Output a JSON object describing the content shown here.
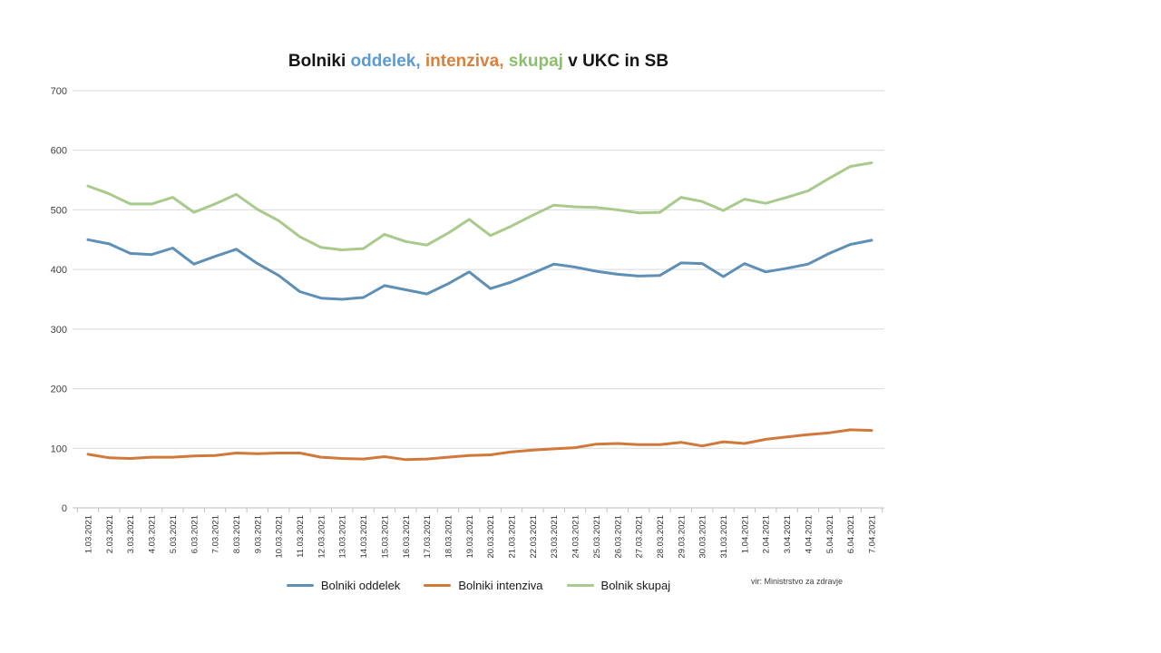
{
  "title": {
    "parts": [
      {
        "text": "Bolniki ",
        "color": "#151515"
      },
      {
        "text": "oddelek,",
        "color": "#5b9bd5"
      },
      {
        "text": " ",
        "color": "#151515"
      },
      {
        "text": "intenziva,",
        "color": "#d9803c"
      },
      {
        "text": " ",
        "color": "#151515"
      },
      {
        "text": "skupaj",
        "color": "#8cbf6c"
      },
      {
        "text": " v UKC in SB",
        "color": "#151515"
      }
    ]
  },
  "source_note": "vir: Ministrstvo za zdravje",
  "legend": [
    {
      "label": "Bolniki oddelek",
      "color": "#5e8fb5"
    },
    {
      "label": "Bolniki intenziva",
      "color": "#d0793b"
    },
    {
      "label": "Bolnik skupaj",
      "color": "#a8ca8b"
    }
  ],
  "axis": {
    "y_ticks": [
      0,
      100,
      200,
      300,
      400,
      500,
      600,
      700
    ]
  },
  "chart_data": {
    "type": "line",
    "title": "Bolniki oddelek, intenziva, skupaj v UKC in SB",
    "xlabel": "",
    "ylabel": "",
    "ylim": [
      0,
      700
    ],
    "ytick_interval": 100,
    "grid": true,
    "legend_position": "bottom",
    "x": [
      "1.03.2021",
      "2.03.2021",
      "3.03.2021",
      "4.03.2021",
      "5.03.2021",
      "6.03.2021",
      "7.03.2021",
      "8.03.2021",
      "9.03.2021",
      "10.03.2021",
      "11.03.2021",
      "12.03.2021",
      "13.03.2021",
      "14.03.2021",
      "15.03.2021",
      "16.03.2021",
      "17.03.2021",
      "18.03.2021",
      "19.03.2021",
      "20.03.2021",
      "21.03.2021",
      "22.03.2021",
      "23.03.2021",
      "24.03.2021",
      "25.03.2021",
      "26.03.2021",
      "27.03.2021",
      "28.03.2021",
      "29.03.2021",
      "30.03.2021",
      "31.03.2021",
      "1.04.2021",
      "2.04.2021",
      "3.04.2021",
      "4.04.2021",
      "5.04.2021",
      "6.04.2021",
      "7.04.2021"
    ],
    "series": [
      {
        "name": "Bolniki oddelek",
        "color": "#5e8fb5",
        "values": [
          450,
          443,
          427,
          425,
          436,
          409,
          422,
          434,
          410,
          390,
          363,
          352,
          350,
          353,
          373,
          366,
          359,
          376,
          396,
          368,
          379,
          394,
          409,
          404,
          397,
          392,
          389,
          390,
          411,
          410,
          388,
          410,
          396,
          402,
          409,
          427,
          442,
          449
        ]
      },
      {
        "name": "Bolniki intenziva",
        "color": "#d0793b",
        "values": [
          90,
          84,
          83,
          85,
          85,
          87,
          88,
          92,
          91,
          92,
          92,
          85,
          83,
          82,
          86,
          81,
          82,
          85,
          88,
          89,
          94,
          97,
          99,
          101,
          107,
          108,
          106,
          106,
          110,
          104,
          111,
          108,
          115,
          119,
          123,
          126,
          131,
          130
        ]
      },
      {
        "name": "Bolnik skupaj",
        "color": "#a8ca8b",
        "values": [
          540,
          527,
          510,
          510,
          521,
          496,
          510,
          526,
          501,
          482,
          455,
          437,
          433,
          435,
          459,
          447,
          441,
          461,
          484,
          457,
          473,
          491,
          508,
          505,
          504,
          500,
          495,
          496,
          521,
          514,
          499,
          518,
          511,
          521,
          532,
          553,
          573,
          579
        ]
      }
    ]
  }
}
